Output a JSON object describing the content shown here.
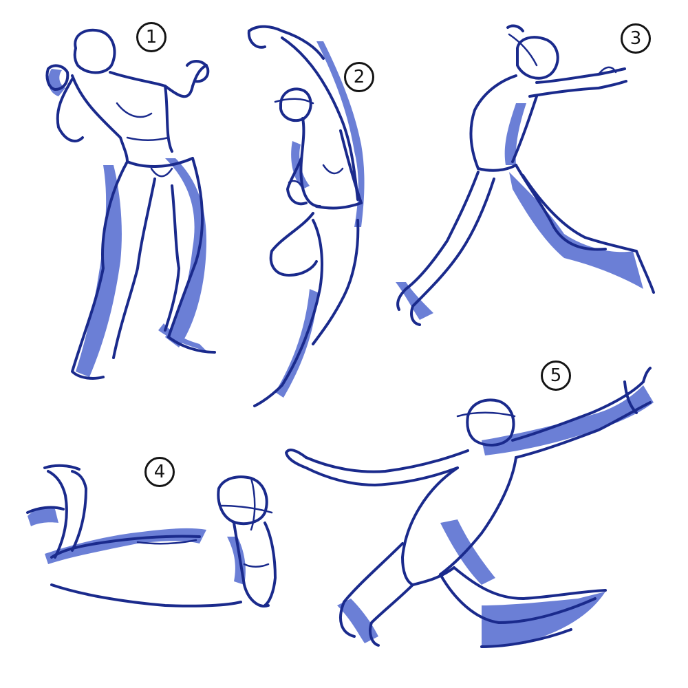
{
  "labels": [
    "1",
    "2",
    "3",
    "4",
    "5"
  ],
  "colors": {
    "ink": "#1a2a8c",
    "shade": "#6b7fd6",
    "label": "#141414",
    "background": "#ffffff"
  }
}
